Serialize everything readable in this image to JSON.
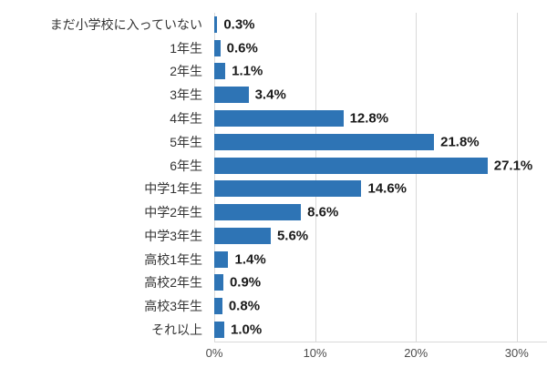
{
  "chart_data": {
    "type": "bar",
    "orientation": "horizontal",
    "title": "",
    "xlabel": "",
    "ylabel": "",
    "categories": [
      "まだ小学校に入っていない",
      "1年生",
      "2年生",
      "3年生",
      "4年生",
      "5年生",
      "6年生",
      "中学1年生",
      "中学2年生",
      "中学3年生",
      "高校1年生",
      "高校2年生",
      "高校3年生",
      "それ以上"
    ],
    "values": [
      0.3,
      0.6,
      1.1,
      3.4,
      12.8,
      21.8,
      27.1,
      14.6,
      8.6,
      5.6,
      1.4,
      0.9,
      0.8,
      1.0
    ],
    "value_labels": [
      "0.3%",
      "0.6%",
      "1.1%",
      "3.4%",
      "12.8%",
      "21.8%",
      "27.1%",
      "14.6%",
      "8.6%",
      "5.6%",
      "1.4%",
      "0.9%",
      "0.8%",
      "1.0%"
    ],
    "x_ticks": [
      {
        "value": 0,
        "label": "0%"
      },
      {
        "value": 10,
        "label": "10%"
      },
      {
        "value": 20,
        "label": "20%"
      },
      {
        "value": 30,
        "label": "30%"
      }
    ],
    "xlim": [
      0,
      33
    ],
    "grid": true,
    "legend": false,
    "colors": {
      "bar": "#2e74b5",
      "gridline": "#d9d9d9",
      "category_text": "#333333",
      "value_text": "#1a1a1a",
      "axis_text": "#4d4d4d"
    }
  }
}
